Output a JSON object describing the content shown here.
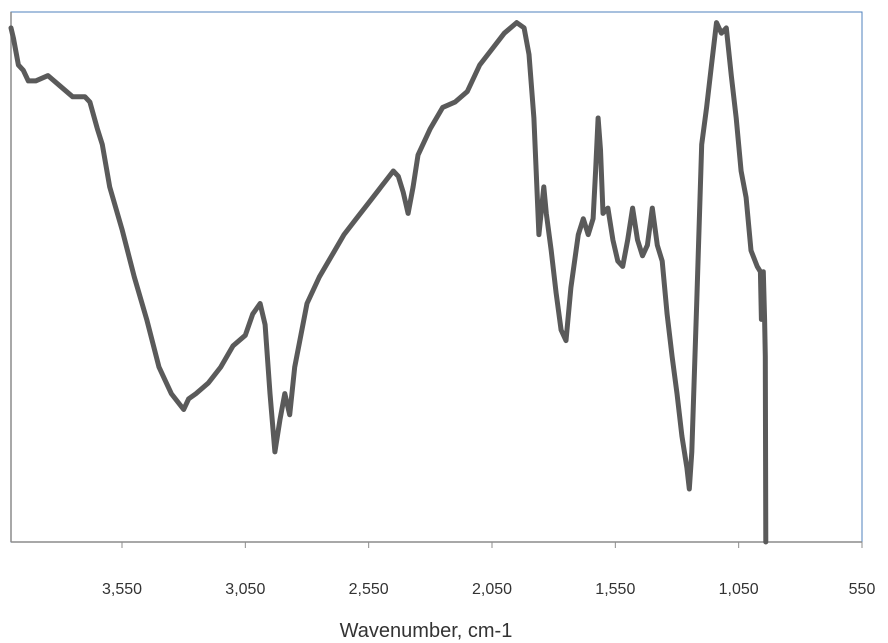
{
  "chart_data": {
    "type": "line",
    "title": "",
    "xlabel": "Wavenumber, cm-1",
    "ylabel": "",
    "x_reversed": true,
    "xlim": [
      4000,
      550
    ],
    "ylim": [
      0,
      100
    ],
    "x_ticks": [
      3550,
      3050,
      2550,
      2050,
      1550,
      1050,
      550
    ],
    "x_tick_labels": [
      "3,550",
      "3,050",
      "2,550",
      "2,050",
      "1,550",
      "1,050",
      "550"
    ],
    "y_ticks_shown": false,
    "grid": false,
    "legend": "none",
    "line_color": "#5a5a5a",
    "frame_color": "#4f81bd",
    "axis_color": "#8c8c8c",
    "series": [
      {
        "values": [
          [
            4000,
            97
          ],
          [
            3990,
            95
          ],
          [
            3970,
            90
          ],
          [
            3950,
            89
          ],
          [
            3930,
            87
          ],
          [
            3900,
            87
          ],
          [
            3850,
            88
          ],
          [
            3800,
            86
          ],
          [
            3750,
            84
          ],
          [
            3700,
            84
          ],
          [
            3680,
            83
          ],
          [
            3650,
            78
          ],
          [
            3630,
            75
          ],
          [
            3600,
            67
          ],
          [
            3550,
            59
          ],
          [
            3500,
            50
          ],
          [
            3450,
            42
          ],
          [
            3400,
            33
          ],
          [
            3350,
            28
          ],
          [
            3300,
            25
          ],
          [
            3280,
            27
          ],
          [
            3250,
            28
          ],
          [
            3200,
            30
          ],
          [
            3150,
            33
          ],
          [
            3100,
            37
          ],
          [
            3050,
            39
          ],
          [
            3020,
            43
          ],
          [
            2990,
            45
          ],
          [
            2970,
            41
          ],
          [
            2950,
            28
          ],
          [
            2930,
            17
          ],
          [
            2910,
            23
          ],
          [
            2890,
            28
          ],
          [
            2870,
            24
          ],
          [
            2850,
            33
          ],
          [
            2800,
            45
          ],
          [
            2750,
            50
          ],
          [
            2700,
            54
          ],
          [
            2650,
            58
          ],
          [
            2600,
            61
          ],
          [
            2550,
            64
          ],
          [
            2500,
            67
          ],
          [
            2450,
            70
          ],
          [
            2430,
            69
          ],
          [
            2410,
            66
          ],
          [
            2390,
            62
          ],
          [
            2370,
            67
          ],
          [
            2350,
            73
          ],
          [
            2300,
            78
          ],
          [
            2250,
            82
          ],
          [
            2200,
            83
          ],
          [
            2150,
            85
          ],
          [
            2100,
            90
          ],
          [
            2050,
            93
          ],
          [
            2000,
            96
          ],
          [
            1950,
            98
          ],
          [
            1920,
            97
          ],
          [
            1900,
            92
          ],
          [
            1880,
            80
          ],
          [
            1860,
            58
          ],
          [
            1840,
            67
          ],
          [
            1830,
            62
          ],
          [
            1810,
            55
          ],
          [
            1790,
            47
          ],
          [
            1770,
            40
          ],
          [
            1750,
            38
          ],
          [
            1730,
            48
          ],
          [
            1700,
            58
          ],
          [
            1680,
            61
          ],
          [
            1660,
            58
          ],
          [
            1640,
            61
          ],
          [
            1630,
            70
          ],
          [
            1620,
            80
          ],
          [
            1610,
            74
          ],
          [
            1600,
            62
          ],
          [
            1580,
            63
          ],
          [
            1560,
            57
          ],
          [
            1540,
            53
          ],
          [
            1520,
            52
          ],
          [
            1500,
            57
          ],
          [
            1480,
            63
          ],
          [
            1460,
            57
          ],
          [
            1440,
            54
          ],
          [
            1420,
            56
          ],
          [
            1400,
            63
          ],
          [
            1380,
            56
          ],
          [
            1360,
            53
          ],
          [
            1340,
            43
          ],
          [
            1320,
            35
          ],
          [
            1300,
            28
          ],
          [
            1280,
            20
          ],
          [
            1260,
            14
          ],
          [
            1250,
            10
          ],
          [
            1240,
            17
          ],
          [
            1220,
            45
          ],
          [
            1200,
            75
          ],
          [
            1180,
            82
          ],
          [
            1160,
            90
          ],
          [
            1140,
            98
          ],
          [
            1120,
            96
          ],
          [
            1100,
            97
          ],
          [
            1080,
            88
          ],
          [
            1060,
            80
          ],
          [
            1040,
            70
          ],
          [
            1020,
            65
          ],
          [
            1000,
            55
          ],
          [
            975,
            52
          ],
          [
            962,
            51
          ],
          [
            958,
            42
          ],
          [
            954,
            48
          ],
          [
            950,
            51
          ],
          [
            945,
            42
          ],
          [
            942,
            35
          ],
          [
            940,
            0
          ]
        ]
      }
    ]
  }
}
